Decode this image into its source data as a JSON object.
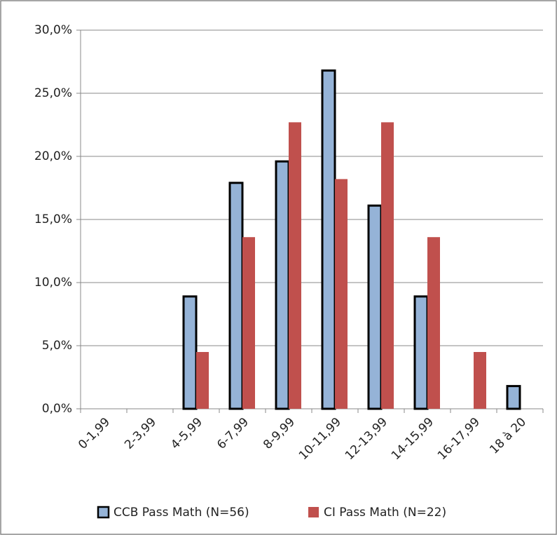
{
  "chart_data": {
    "type": "bar",
    "categories": [
      "0-1,99",
      "2-3,99",
      "4-5,99",
      "6-7,99",
      "8-9,99",
      "10-11,99",
      "12-13,99",
      "14-15,99",
      "16-17,99",
      "18 à 20"
    ],
    "series": [
      {
        "name": "CCB Pass Math (N=56)",
        "color": "#95b3d7",
        "values": [
          0,
          0,
          8.9,
          17.9,
          19.6,
          26.8,
          16.1,
          8.9,
          0,
          1.8
        ]
      },
      {
        "name": "CI Pass Math (N=22)",
        "color": "#c0504d",
        "values": [
          0,
          0,
          4.5,
          13.6,
          22.7,
          18.2,
          22.7,
          13.6,
          4.5,
          0
        ]
      }
    ],
    "ylim": [
      0,
      30
    ],
    "yticks": [
      {
        "value": 0,
        "label": "0,0%"
      },
      {
        "value": 5,
        "label": "5,0%"
      },
      {
        "value": 10,
        "label": "10,0%"
      },
      {
        "value": 15,
        "label": "15,0%"
      },
      {
        "value": 20,
        "label": "20,0%"
      },
      {
        "value": 25,
        "label": "25,0%"
      },
      {
        "value": 30,
        "label": "30,0%"
      }
    ],
    "grid": true,
    "legend": "bottom"
  }
}
